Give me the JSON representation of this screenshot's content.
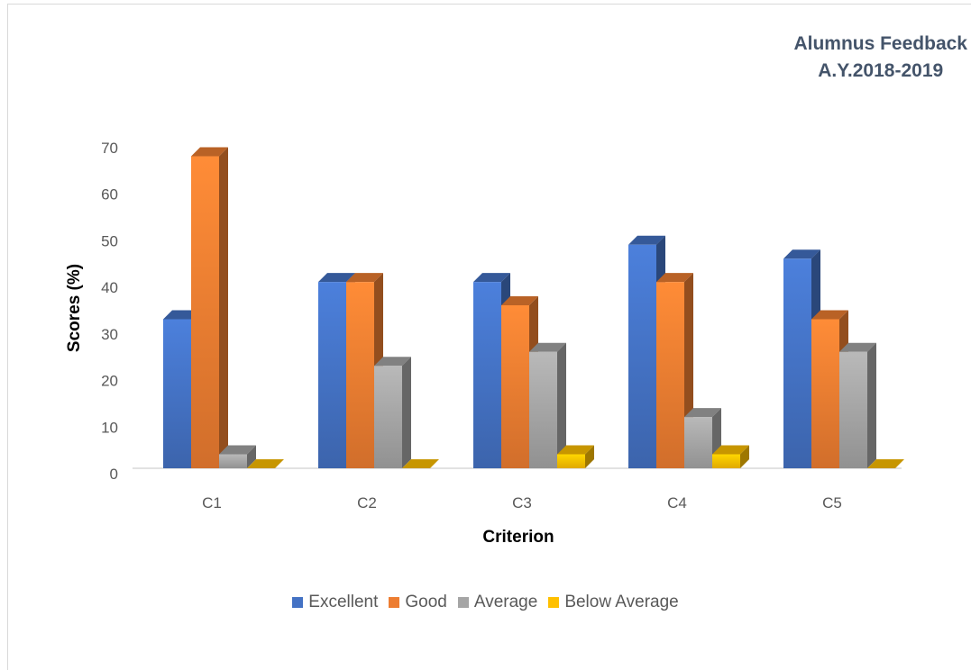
{
  "chart_data": {
    "type": "bar",
    "title_lines": [
      "Alumnus Feedback",
      "A.Y.2018-2019"
    ],
    "xlabel": "Criterion",
    "ylabel": "Scores (%)",
    "categories": [
      "C1",
      "C2",
      "C3",
      "C4",
      "C5"
    ],
    "series": [
      {
        "name": "Excellent",
        "values": [
          32,
          40,
          40,
          48,
          45
        ],
        "color": "#4472c4"
      },
      {
        "name": "Good",
        "values": [
          67,
          40,
          35,
          40,
          32
        ],
        "color": "#ed7d31"
      },
      {
        "name": "Average",
        "values": [
          3,
          22,
          25,
          11,
          25
        ],
        "color": "#a5a5a5"
      },
      {
        "name": "Below Average",
        "values": [
          0,
          0,
          3,
          3,
          0
        ],
        "color": "#ffc000"
      }
    ],
    "yticks": [
      "0",
      "10",
      "20",
      "30",
      "40",
      "50",
      "60",
      "70"
    ],
    "ylim": [
      0,
      70
    ],
    "grid": false,
    "legend_position": "bottom",
    "style": "3d-column"
  }
}
